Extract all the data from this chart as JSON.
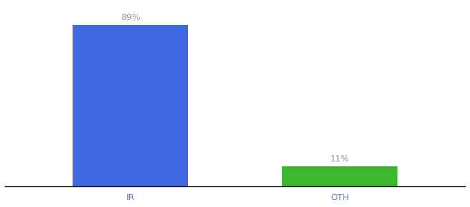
{
  "categories": [
    "IR",
    "OTH"
  ],
  "values": [
    89,
    11
  ],
  "bar_colors": [
    "#4169E1",
    "#3CB830"
  ],
  "value_labels": [
    "89%",
    "11%"
  ],
  "ylim": [
    0,
    100
  ],
  "background_color": "#ffffff",
  "bar_width": 0.55,
  "label_fontsize": 9,
  "tick_fontsize": 9,
  "tick_color": "#5577aa",
  "label_color": "#999999"
}
